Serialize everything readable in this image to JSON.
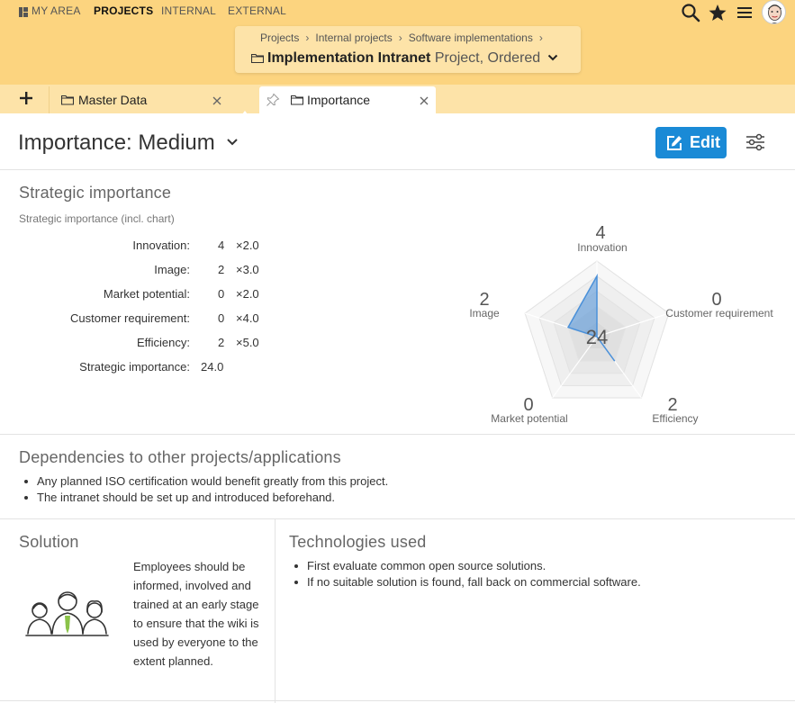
{
  "nav": {
    "my_area": "MY AREA",
    "projects": "PROJECTS",
    "internal": "INTERNAL",
    "external": "EXTERNAL"
  },
  "breadcrumb": {
    "items": [
      "Projects",
      "Internal projects",
      "Software implementations"
    ],
    "separator": "›"
  },
  "project": {
    "title": "Implementation Intranet",
    "subtitle": "Project, Ordered"
  },
  "tabs": [
    {
      "label": "Master Data"
    },
    {
      "label": "Importance"
    }
  ],
  "page": {
    "title": "Importance: Medium",
    "edit_label": "Edit"
  },
  "strategic": {
    "section_title": "Strategic importance",
    "subtitle": "Strategic importance (incl. chart)",
    "rows": [
      {
        "label": "Innovation:",
        "value": "4",
        "factor": "×2.0"
      },
      {
        "label": "Image:",
        "value": "2",
        "factor": "×3.0"
      },
      {
        "label": "Market potential:",
        "value": "0",
        "factor": "×2.0"
      },
      {
        "label": "Customer requirement:",
        "value": "0",
        "factor": "×4.0"
      },
      {
        "label": "Efficiency:",
        "value": "2",
        "factor": "×5.0"
      }
    ],
    "total_label": "Strategic importance:",
    "total_value": "24.0"
  },
  "chart_data": {
    "type": "radar",
    "center_label": "24",
    "max": 5,
    "axes": [
      "Innovation",
      "Customer requirement",
      "Efficiency",
      "Market potential",
      "Image"
    ],
    "values": [
      4,
      0,
      2,
      0,
      2
    ],
    "value_labels": [
      "4",
      "0",
      "2",
      "0",
      "2"
    ],
    "fill_color": "#4a90d9"
  },
  "dependencies": {
    "title": "Dependencies to other projects/applications",
    "items": [
      "Any planned ISO certification would benefit greatly from this project.",
      "The intranet should be set up and introduced beforehand."
    ]
  },
  "solution": {
    "title": "Solution",
    "text": "Employees should be informed, involved and trained at an early stage to ensure that the wiki is used by everyone to the extent planned."
  },
  "technologies": {
    "title": "Technologies used",
    "items": [
      "First evaluate common open source solutions.",
      "If no suitable solution is found, fall back on commercial software."
    ]
  },
  "colors": {
    "header": "#fcd47f",
    "accent": "#1a8ad6"
  }
}
